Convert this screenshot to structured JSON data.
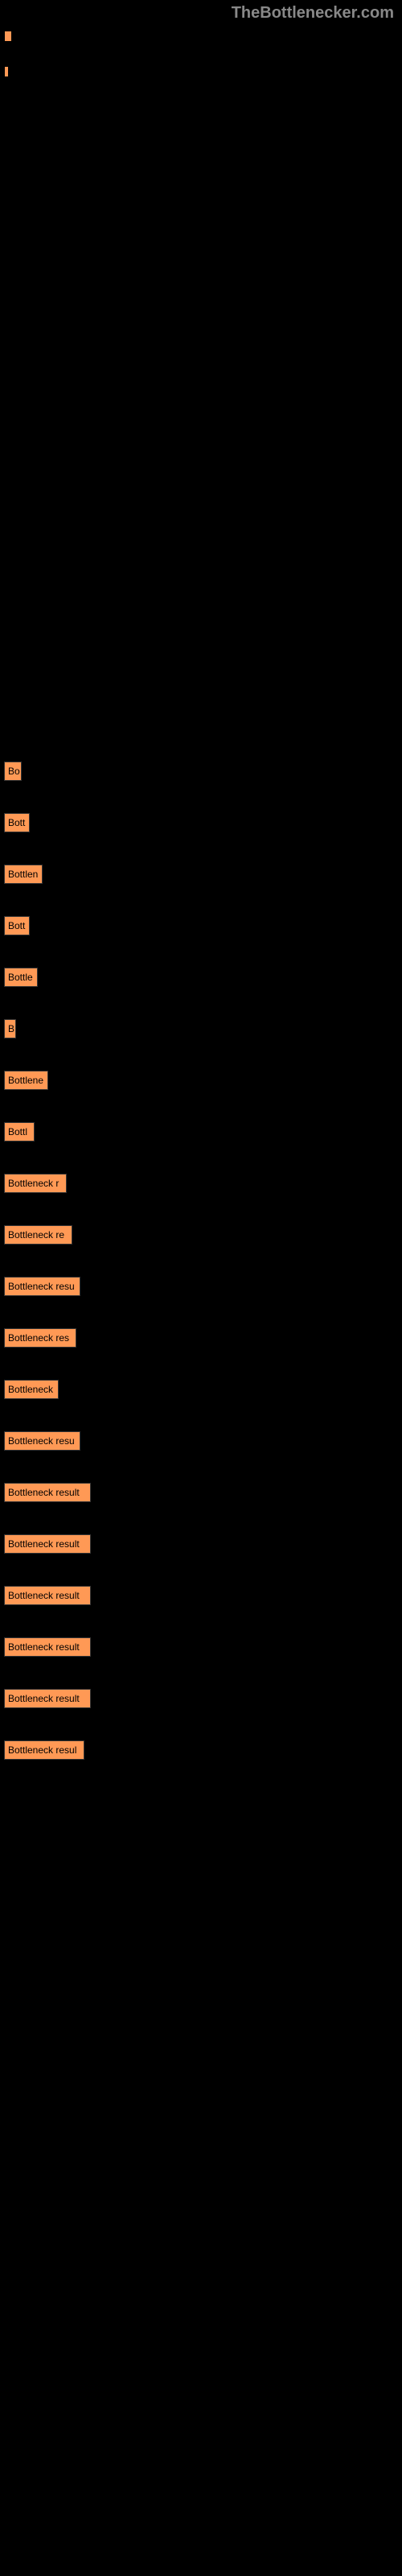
{
  "header": {
    "title": "TheBottlenecker.com"
  },
  "topBars": {
    "bar1_width": 10,
    "bar2_width": 6
  },
  "chart": {
    "bar_color": "#ff9955",
    "text_color": "#000000",
    "background_color": "#000000",
    "bars": [
      {
        "label": "Bo",
        "width": 22
      },
      {
        "label": "Bott",
        "width": 32
      },
      {
        "label": "Bottlen",
        "width": 48
      },
      {
        "label": "Bott",
        "width": 32
      },
      {
        "label": "Bottle",
        "width": 42
      },
      {
        "label": "B",
        "width": 15
      },
      {
        "label": "Bottlene",
        "width": 55
      },
      {
        "label": "Bottl",
        "width": 38
      },
      {
        "label": "Bottleneck r",
        "width": 78
      },
      {
        "label": "Bottleneck re",
        "width": 85
      },
      {
        "label": "Bottleneck resu",
        "width": 95
      },
      {
        "label": "Bottleneck res",
        "width": 90
      },
      {
        "label": "Bottleneck",
        "width": 68
      },
      {
        "label": "Bottleneck resu",
        "width": 95
      },
      {
        "label": "Bottleneck result",
        "width": 108
      },
      {
        "label": "Bottleneck result",
        "width": 108
      },
      {
        "label": "Bottleneck result",
        "width": 108
      },
      {
        "label": "Bottleneck result",
        "width": 108
      },
      {
        "label": "Bottleneck result",
        "width": 108
      },
      {
        "label": "Bottleneck resul",
        "width": 100
      }
    ]
  }
}
